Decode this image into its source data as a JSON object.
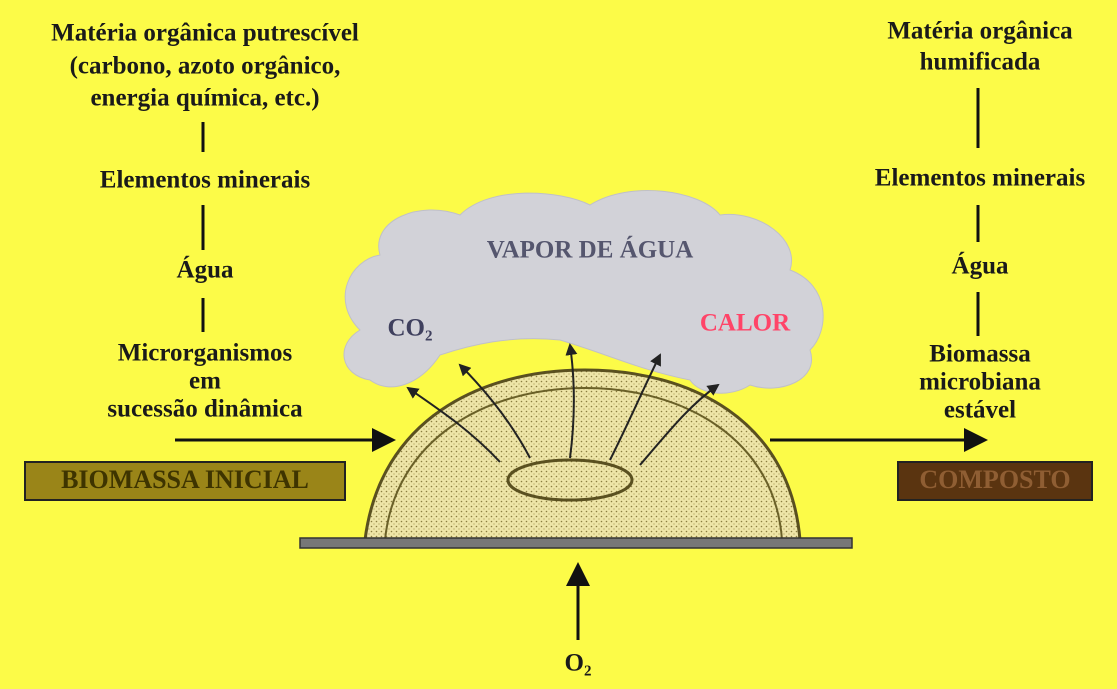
{
  "left": {
    "lines": [
      "Matéria orgânica putrescível",
      "(carbono, azoto orgânico,",
      "energia química, etc.)"
    ],
    "minerals": "Elementos minerais",
    "water": "Água",
    "microbes": [
      "Microrganismos",
      "em",
      "sucessão dinâmica"
    ],
    "box": "BIOMASSA INICIAL"
  },
  "right": {
    "lines": [
      "Matéria orgânica",
      "humificada"
    ],
    "minerals": "Elementos minerais",
    "water": "Água",
    "biomass": [
      "Biomassa",
      "microbiana",
      "estável"
    ],
    "box": "COMPOSTO"
  },
  "cloud": {
    "vapor": "VAPOR DE ÁGUA",
    "co2": "CO₂",
    "heat": "CALOR"
  },
  "oxygen": "O₂"
}
